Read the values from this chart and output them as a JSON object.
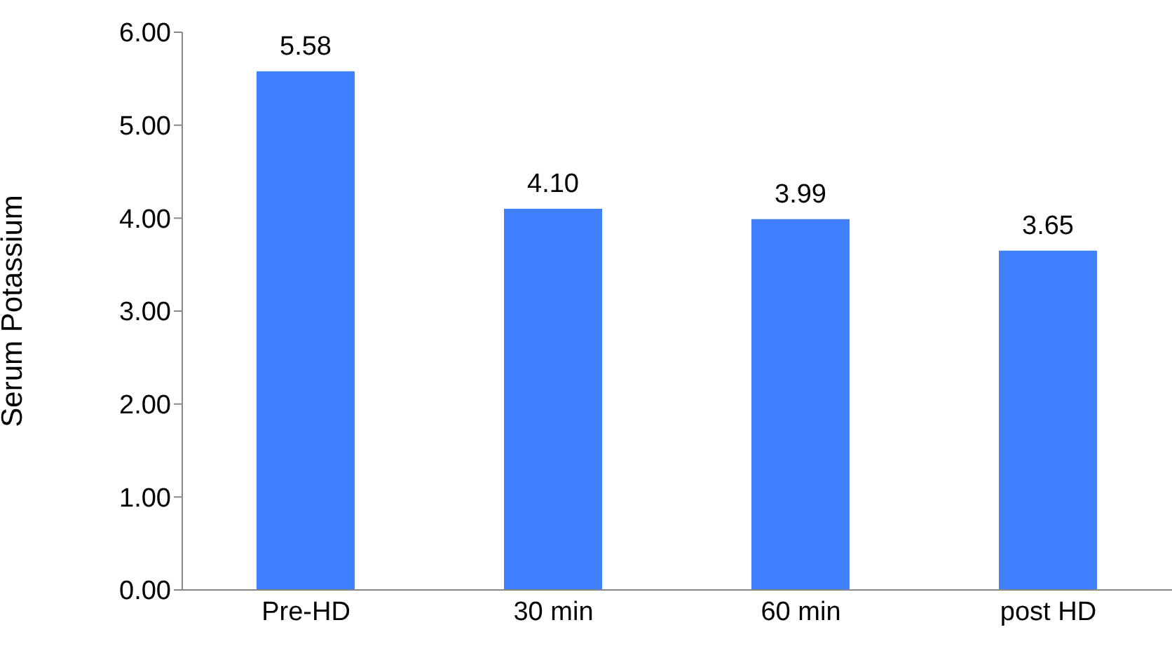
{
  "chart_data": {
    "type": "bar",
    "ylabel": "Serum  Potassium",
    "categories": [
      "Pre-HD",
      "30 min",
      "60 min",
      "post HD"
    ],
    "values": [
      5.58,
      4.1,
      3.99,
      3.65
    ],
    "value_labels": [
      "5.58",
      "4.10",
      "3.99",
      "3.65"
    ],
    "color": "#4080ff",
    "ylim": [
      0,
      6
    ],
    "yticks": [
      {
        "value": 0,
        "label": "0.00"
      },
      {
        "value": 1,
        "label": "1.00"
      },
      {
        "value": 2,
        "label": "2.00"
      },
      {
        "value": 3,
        "label": "3.00"
      },
      {
        "value": 4,
        "label": "4.00"
      },
      {
        "value": 5,
        "label": "5.00"
      },
      {
        "value": 6,
        "label": "6.00"
      }
    ],
    "grid": false,
    "legend": false
  }
}
